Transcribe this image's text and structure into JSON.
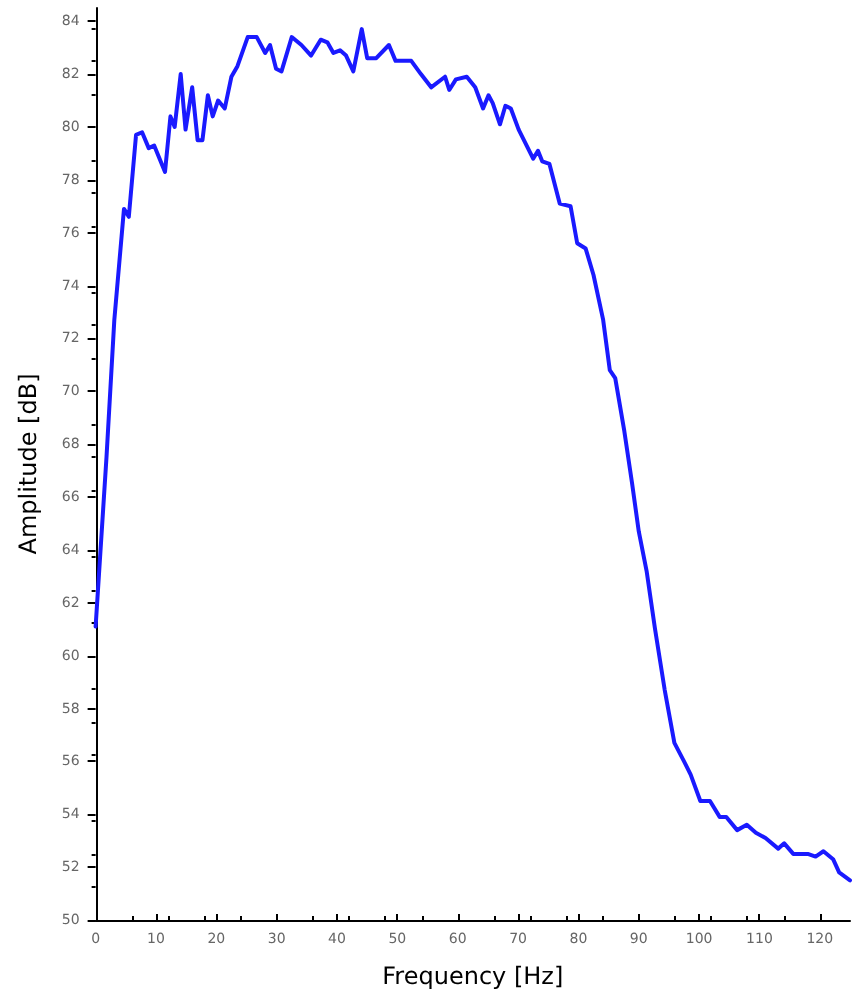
{
  "chart_data": {
    "type": "line",
    "xlabel": "Frequency [Hz]",
    "ylabel": "Amplitude [dB]",
    "xlim": [
      0,
      125
    ],
    "xticks": [
      0,
      10,
      20,
      30,
      40,
      50,
      60,
      70,
      80,
      90,
      100,
      110,
      120
    ],
    "ylim": [
      50,
      84.5
    ],
    "yticks": [
      50,
      52,
      54,
      56,
      58,
      60,
      62,
      64,
      66,
      68,
      70,
      72,
      74,
      76,
      78,
      80,
      82,
      84
    ],
    "grid": false,
    "marker": "none",
    "line_style": "solid",
    "series": [
      {
        "color": "#1a1aff",
        "x": [
          0,
          1.8,
          3.1,
          4.7,
          5.5,
          6.7,
          7.7,
          8.8,
          9.7,
          11.5,
          12.4,
          13.1,
          14.1,
          14.9,
          16.0,
          16.9,
          17.7,
          18.6,
          19.4,
          20.3,
          21.4,
          22.5,
          23.5,
          25.2,
          26.7,
          28.1,
          28.9,
          29.9,
          30.8,
          32.5,
          34.1,
          35.7,
          37.3,
          38.4,
          39.4,
          40.5,
          41.5,
          42.7,
          44.1,
          45.0,
          46.5,
          48.6,
          49.7,
          52.3,
          53.9,
          55.6,
          57.9,
          58.6,
          59.7,
          61.5,
          62.9,
          64.2,
          65.1,
          65.8,
          67.0,
          67.9,
          68.8,
          70.1,
          72.5,
          73.3,
          74.0,
          75.2,
          76.9,
          78.7,
          79.8,
          81.2,
          82.5,
          84.1,
          85.2,
          86.1,
          87.6,
          88.9,
          90.0,
          91.3,
          92.7,
          94.3,
          95.9,
          97.5,
          98.6,
          100.2,
          101.8,
          103.4,
          104.5,
          106.3,
          107.9,
          109.4,
          111.0,
          113.1,
          114.1,
          115.6,
          118.0,
          119.3,
          120.6,
          122.2,
          123.2,
          125
        ],
        "values": [
          61.1,
          67.5,
          72.7,
          76.9,
          76.6,
          79.7,
          79.8,
          79.2,
          79.3,
          78.3,
          80.4,
          80.0,
          82.0,
          79.9,
          81.5,
          79.5,
          79.5,
          81.2,
          80.4,
          81.0,
          80.7,
          81.9,
          82.3,
          83.4,
          83.4,
          82.8,
          83.1,
          82.2,
          82.1,
          83.4,
          83.1,
          82.7,
          83.3,
          83.2,
          82.8,
          82.9,
          82.7,
          82.1,
          83.7,
          82.6,
          82.6,
          83.1,
          82.5,
          82.5,
          82.0,
          81.5,
          81.9,
          81.4,
          81.8,
          81.9,
          81.5,
          80.7,
          81.2,
          80.9,
          80.1,
          80.8,
          80.7,
          79.9,
          78.8,
          79.1,
          78.7,
          78.6,
          77.1,
          77.0,
          75.6,
          75.4,
          74.4,
          72.7,
          70.8,
          70.5,
          68.5,
          66.5,
          64.7,
          63.2,
          61.0,
          58.7,
          56.7,
          56.0,
          55.5,
          54.5,
          54.5,
          53.9,
          53.9,
          53.4,
          53.6,
          53.3,
          53.1,
          52.7,
          52.9,
          52.5,
          52.5,
          52.4,
          52.6,
          52.3,
          51.8,
          51.5
        ]
      }
    ]
  }
}
